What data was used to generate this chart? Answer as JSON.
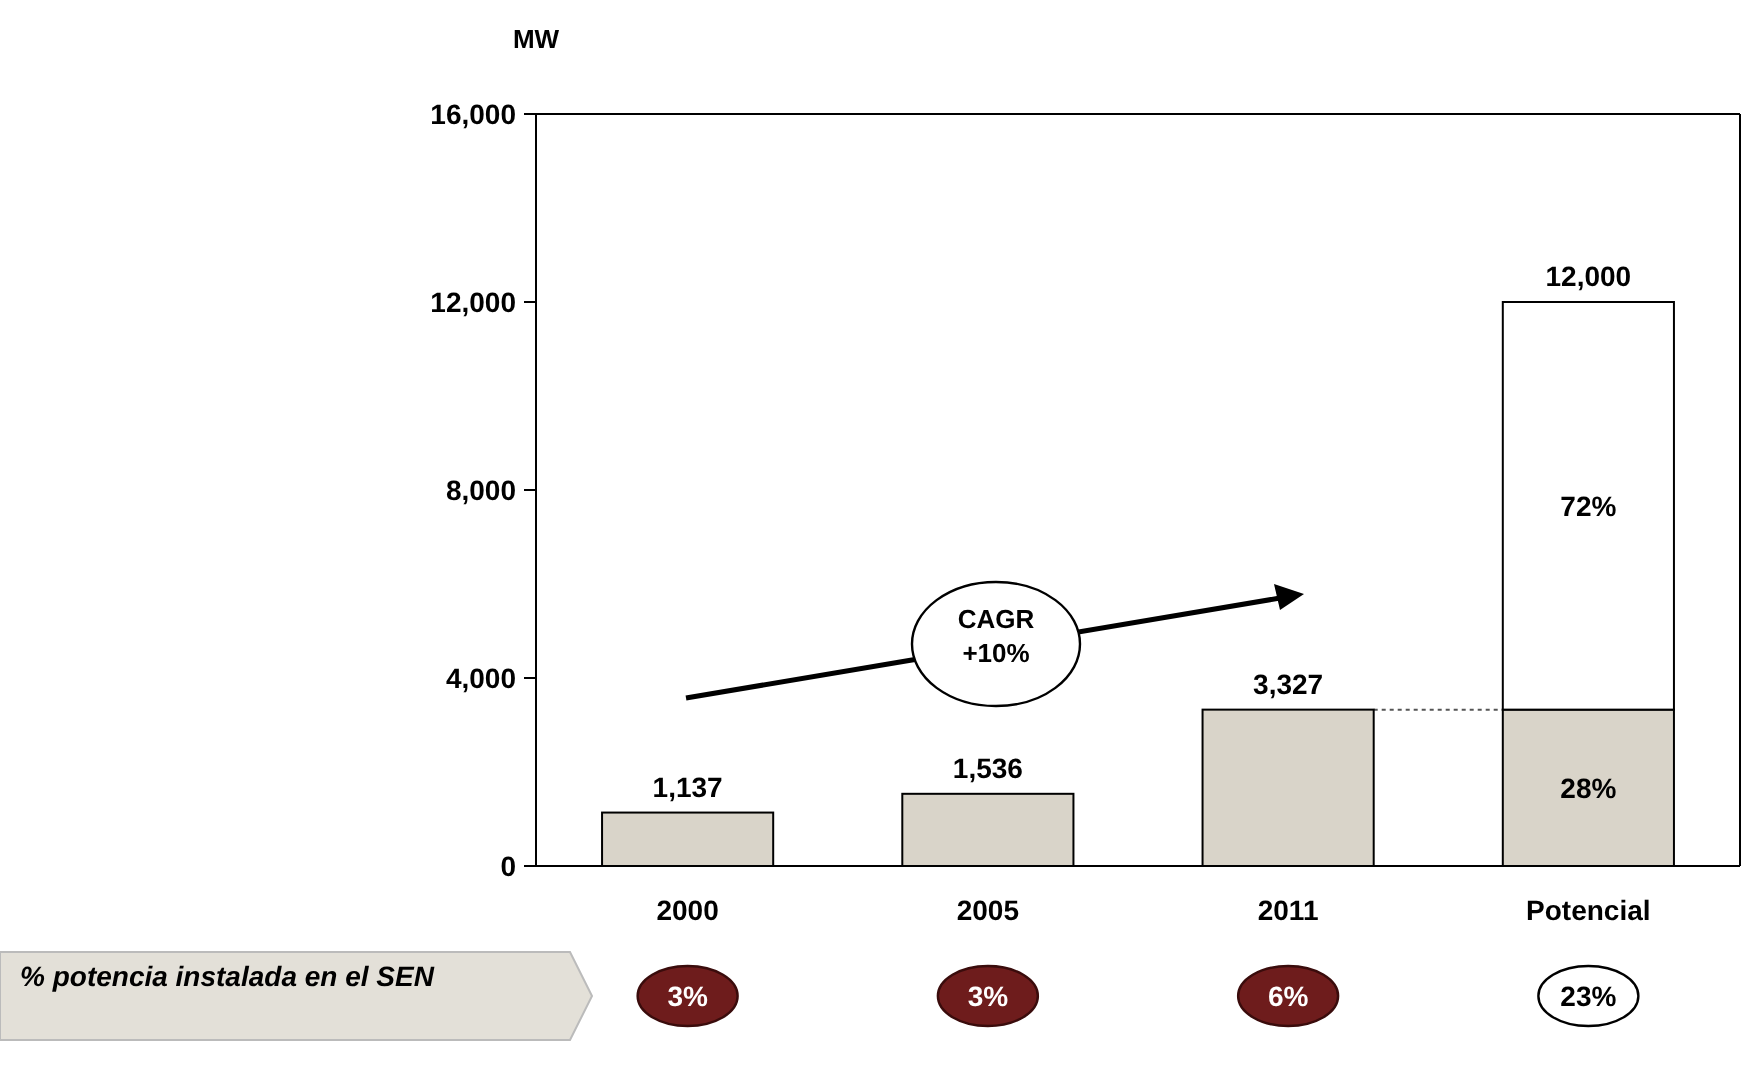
{
  "chart_data": {
    "type": "bar",
    "stacked": true,
    "ylabel": "MW",
    "categories": [
      "2000",
      "2005",
      "2011",
      "Potencial"
    ],
    "series": [
      {
        "color": "#d9d4c9",
        "values": [
          1137,
          1536,
          3327,
          3327
        ]
      },
      {
        "color": "#ffffff",
        "values": [
          null,
          null,
          null,
          8673
        ]
      }
    ],
    "totals": [
      "1,137",
      "1,536",
      "3,327",
      "12,000"
    ],
    "ylim": [
      0,
      16000
    ],
    "yticks": [
      0,
      {
        "value": 4000,
        "label": "4,000"
      },
      {
        "value": 8000,
        "label": "8,000"
      },
      {
        "value": 12000,
        "label": "12,000"
      },
      {
        "value": 16000,
        "label": "16,000"
      }
    ],
    "annotations": [
      "CAGR +10%",
      "% potencia instalada en el SEN",
      "3%",
      "3%",
      "6%",
      "23%",
      "28%",
      "72%"
    ]
  }
}
